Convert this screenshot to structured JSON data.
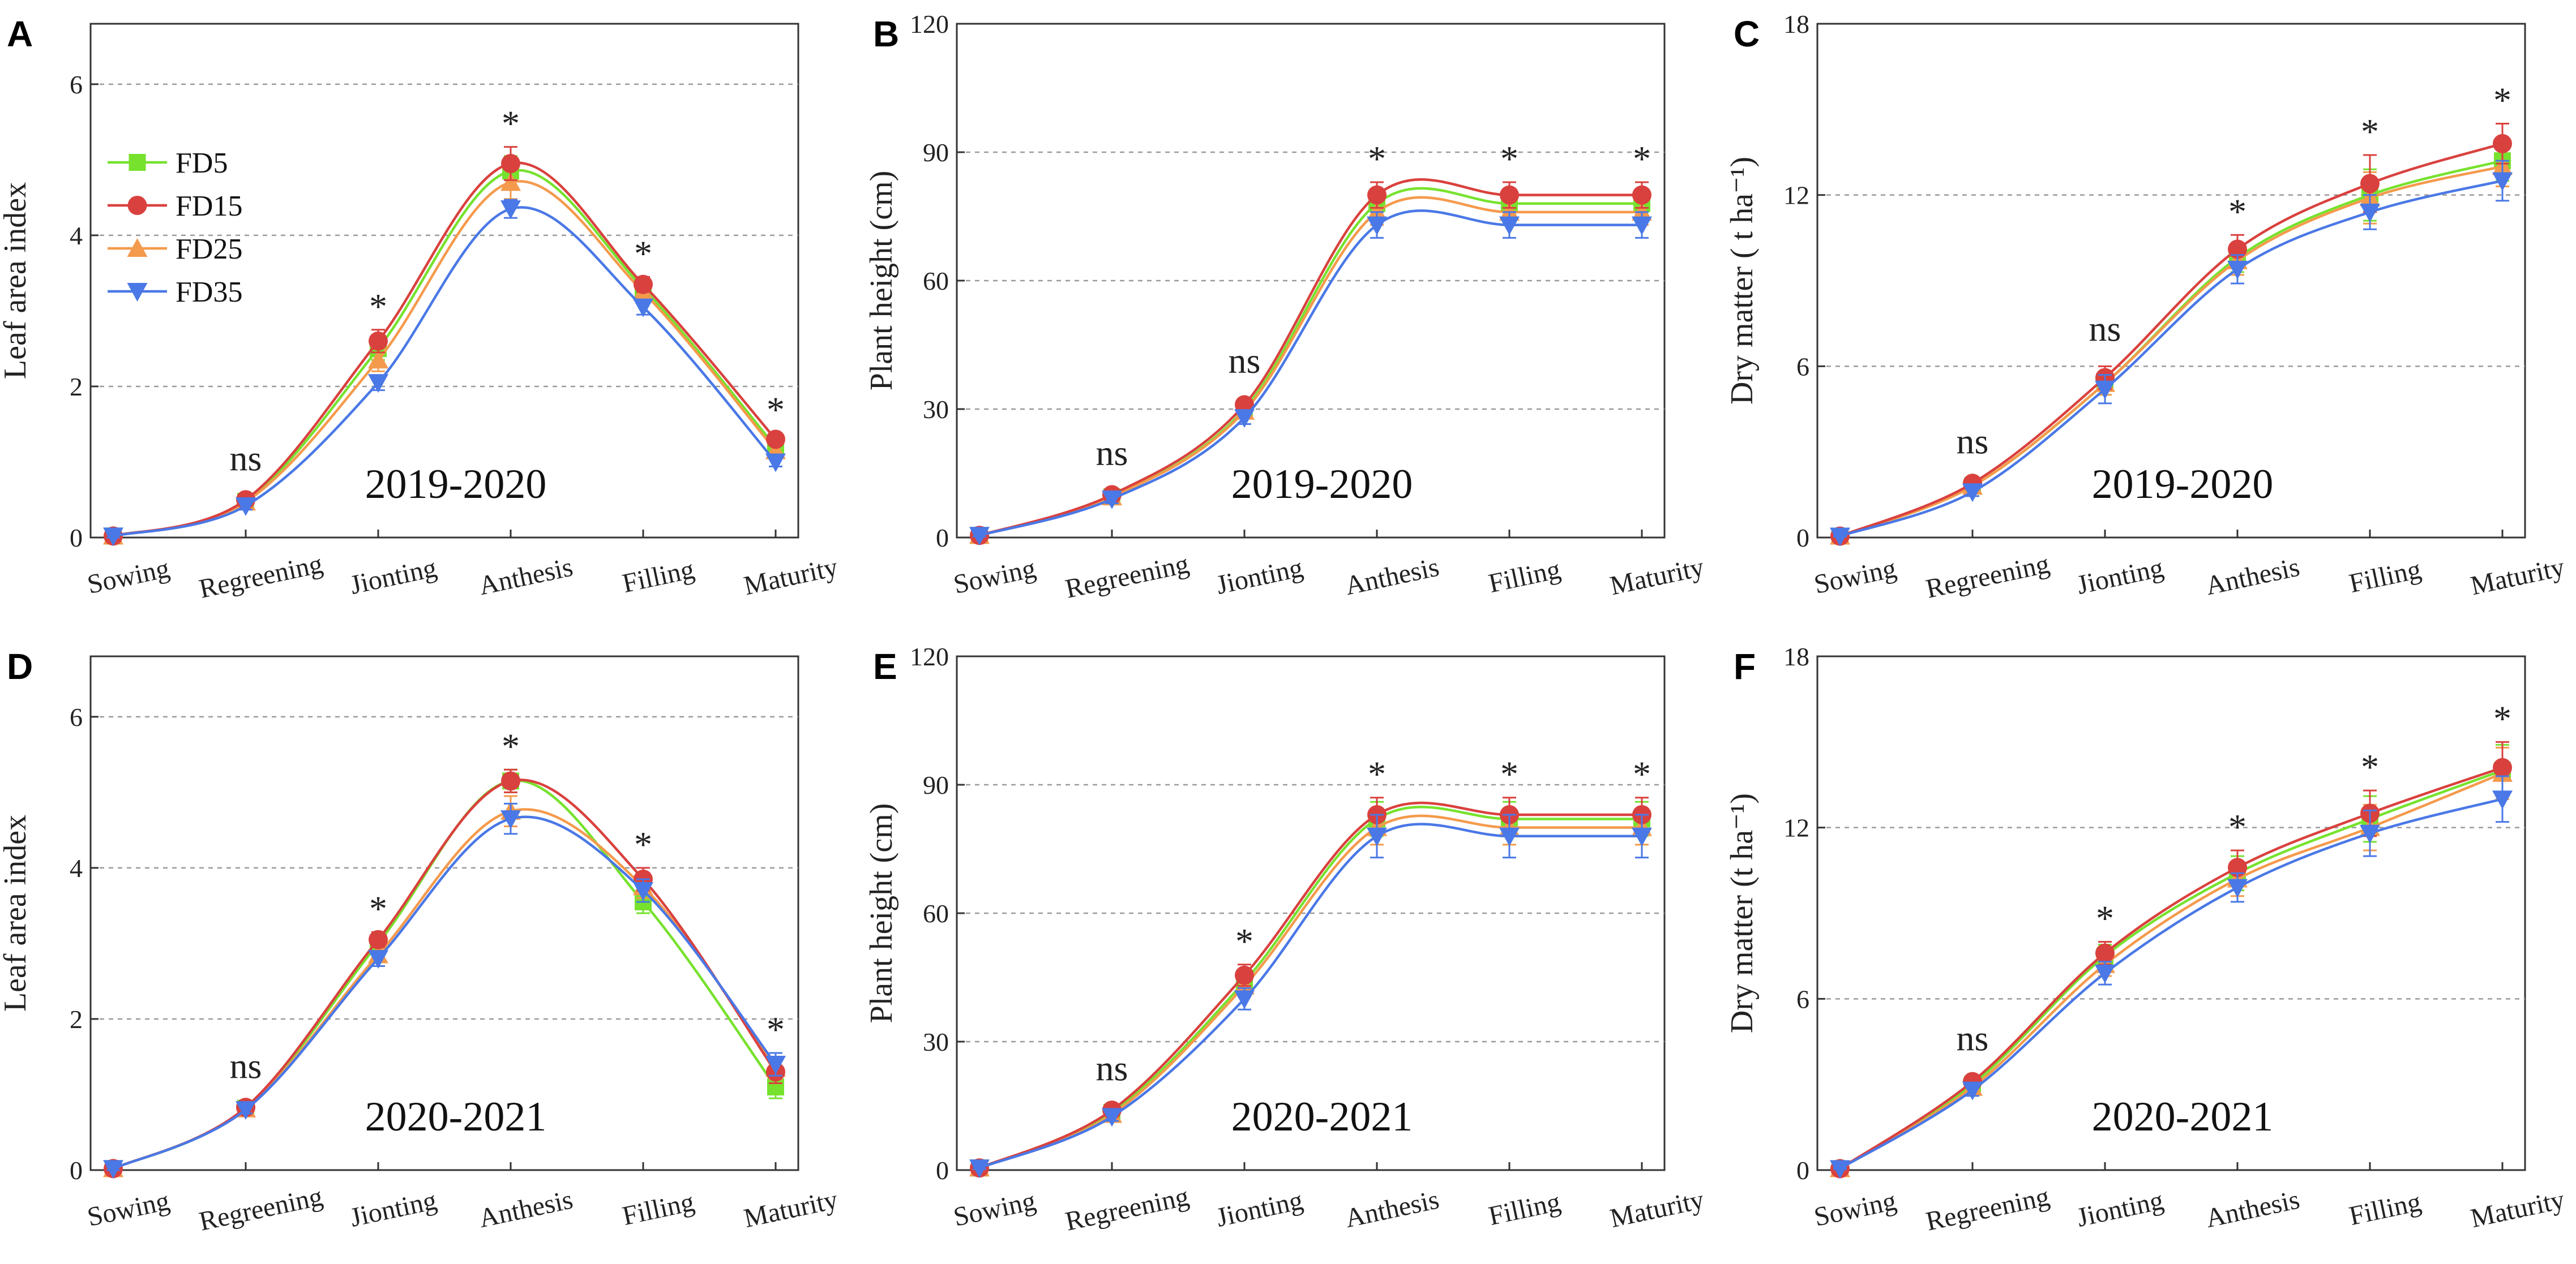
{
  "figure": {
    "categories": [
      "Sowing",
      "Regreening",
      "Jionting",
      "Anthesis",
      "Filling",
      "Maturity"
    ],
    "legend": [
      "FD5",
      "FD15",
      "FD25",
      "FD35"
    ],
    "colors": {
      "FD5": "#77e22e",
      "FD15": "#d9413e",
      "FD25": "#f49a4c",
      "FD35": "#4a78e6"
    },
    "markers": {
      "FD5": "square",
      "FD15": "circle",
      "FD25": "triangle-up",
      "FD35": "triangle-down"
    }
  },
  "chart_data": [
    {
      "panel": "A",
      "type": "line",
      "title": "",
      "season": "2019-2020",
      "xlabel": "",
      "ylabel": "Leaf area index",
      "ylim": [
        0,
        6.8
      ],
      "yticks": [
        0,
        2,
        4,
        6
      ],
      "grid": "dashed-y",
      "categories": [
        "Sowing",
        "Regreening",
        "Jionting",
        "Anthesis",
        "Filling",
        "Maturity"
      ],
      "significance": [
        "",
        "ns",
        "*",
        "*",
        "*",
        "*"
      ],
      "series": [
        {
          "name": "FD5",
          "values": [
            0.02,
            0.48,
            2.5,
            4.85,
            3.3,
            1.2
          ],
          "errors": [
            0.02,
            0.05,
            0.15,
            0.2,
            0.1,
            0.08
          ]
        },
        {
          "name": "FD15",
          "values": [
            0.02,
            0.5,
            2.6,
            4.95,
            3.35,
            1.3
          ],
          "errors": [
            0.02,
            0.05,
            0.15,
            0.22,
            0.1,
            0.08
          ]
        },
        {
          "name": "FD25",
          "values": [
            0.02,
            0.47,
            2.35,
            4.7,
            3.25,
            1.15
          ],
          "errors": [
            0.02,
            0.05,
            0.15,
            0.22,
            0.1,
            0.08
          ]
        },
        {
          "name": "FD35",
          "values": [
            0.02,
            0.42,
            2.05,
            4.35,
            3.05,
            1.0
          ],
          "errors": [
            0.02,
            0.05,
            0.1,
            0.12,
            0.1,
            0.06
          ]
        }
      ]
    },
    {
      "panel": "B",
      "type": "line",
      "title": "",
      "season": "2019-2020",
      "xlabel": "",
      "ylabel": "Plant height (cm)",
      "ylim": [
        0,
        120
      ],
      "yticks": [
        0,
        30,
        60,
        90,
        120
      ],
      "grid": "dashed-y",
      "categories": [
        "Sowing",
        "Regreening",
        "Jionting",
        "Anthesis",
        "Filling",
        "Maturity"
      ],
      "significance": [
        "",
        "ns",
        "ns",
        "*",
        "*",
        "*"
      ],
      "series": [
        {
          "name": "FD5",
          "values": [
            0.5,
            9.5,
            30,
            78,
            78,
            78
          ],
          "errors": [
            0.3,
            1,
            1.5,
            3,
            3,
            3
          ]
        },
        {
          "name": "FD15",
          "values": [
            0.5,
            10,
            31,
            80,
            80,
            80
          ],
          "errors": [
            0.3,
            1,
            1.5,
            3,
            3,
            3
          ]
        },
        {
          "name": "FD25",
          "values": [
            0.5,
            9.5,
            29.5,
            76,
            76,
            76
          ],
          "errors": [
            0.3,
            1,
            1.5,
            3,
            3,
            3
          ]
        },
        {
          "name": "FD35",
          "values": [
            0.5,
            9,
            28,
            73,
            73,
            73
          ],
          "errors": [
            0.3,
            1,
            1.5,
            3,
            3,
            3
          ]
        }
      ]
    },
    {
      "panel": "C",
      "type": "line",
      "title": "",
      "season": "2019-2020",
      "xlabel": "",
      "ylabel": "Dry matter ( t ha⁻¹)",
      "ylim": [
        0,
        18
      ],
      "yticks": [
        0,
        6,
        12,
        18
      ],
      "grid": "dashed-y",
      "categories": [
        "Sowing",
        "Regreening",
        "Jionting",
        "Anthesis",
        "Filling",
        "Maturity"
      ],
      "significance": [
        "",
        "ns",
        "ns",
        "*",
        "*",
        "*"
      ],
      "series": [
        {
          "name": "FD5",
          "values": [
            0.05,
            1.8,
            5.4,
            9.8,
            12.0,
            13.2
          ],
          "errors": [
            0.02,
            0.15,
            0.4,
            0.5,
            0.9,
            0.7
          ]
        },
        {
          "name": "FD15",
          "values": [
            0.05,
            1.9,
            5.6,
            10.1,
            12.4,
            13.8
          ],
          "errors": [
            0.02,
            0.15,
            0.4,
            0.5,
            1.0,
            0.7
          ]
        },
        {
          "name": "FD25",
          "values": [
            0.05,
            1.8,
            5.4,
            9.7,
            11.9,
            13.0
          ],
          "errors": [
            0.02,
            0.15,
            0.4,
            0.5,
            0.9,
            0.7
          ]
        },
        {
          "name": "FD35",
          "values": [
            0.05,
            1.6,
            5.2,
            9.4,
            11.4,
            12.5
          ],
          "errors": [
            0.02,
            0.15,
            0.5,
            0.5,
            0.6,
            0.7
          ]
        }
      ]
    },
    {
      "panel": "D",
      "type": "line",
      "title": "",
      "season": "2020-2021",
      "xlabel": "",
      "ylabel": "Leaf area index",
      "ylim": [
        0,
        6.8
      ],
      "yticks": [
        0,
        2,
        4,
        6
      ],
      "grid": "dashed-y",
      "categories": [
        "Sowing",
        "Regreening",
        "Jionting",
        "Anthesis",
        "Filling",
        "Maturity"
      ],
      "significance": [
        "",
        "ns",
        "*",
        "*",
        "*",
        "*"
      ],
      "series": [
        {
          "name": "FD5",
          "values": [
            0.02,
            0.82,
            3.0,
            5.15,
            3.55,
            1.1
          ],
          "errors": [
            0.02,
            0.05,
            0.1,
            0.15,
            0.15,
            0.15
          ]
        },
        {
          "name": "FD15",
          "values": [
            0.02,
            0.83,
            3.05,
            5.15,
            3.85,
            1.3
          ],
          "errors": [
            0.02,
            0.05,
            0.1,
            0.15,
            0.15,
            0.15
          ]
        },
        {
          "name": "FD25",
          "values": [
            0.02,
            0.81,
            2.85,
            4.75,
            3.75,
            1.35
          ],
          "errors": [
            0.02,
            0.05,
            0.1,
            0.2,
            0.15,
            0.15
          ]
        },
        {
          "name": "FD35",
          "values": [
            0.02,
            0.8,
            2.8,
            4.65,
            3.7,
            1.4
          ],
          "errors": [
            0.02,
            0.05,
            0.1,
            0.2,
            0.15,
            0.15
          ]
        }
      ]
    },
    {
      "panel": "E",
      "type": "line",
      "title": "",
      "season": "2020-2021",
      "xlabel": "",
      "ylabel": "Plant height (cm)",
      "ylim": [
        0,
        120
      ],
      "yticks": [
        0,
        30,
        60,
        90,
        120
      ],
      "grid": "dashed-y",
      "categories": [
        "Sowing",
        "Regreening",
        "Jionting",
        "Anthesis",
        "Filling",
        "Maturity"
      ],
      "significance": [
        "",
        "ns",
        "*",
        "*",
        "*",
        "*"
      ],
      "series": [
        {
          "name": "FD5",
          "values": [
            0.5,
            13.5,
            44,
            82,
            82,
            82
          ],
          "errors": [
            0.3,
            1,
            2.5,
            4,
            4,
            4
          ]
        },
        {
          "name": "FD15",
          "values": [
            0.5,
            14,
            45.5,
            83,
            83,
            83
          ],
          "errors": [
            0.3,
            1,
            2.5,
            4,
            4,
            4
          ]
        },
        {
          "name": "FD25",
          "values": [
            0.5,
            13,
            43,
            80,
            80,
            80
          ],
          "errors": [
            0.3,
            1,
            2.5,
            4,
            4,
            4
          ]
        },
        {
          "name": "FD35",
          "values": [
            0.5,
            12.5,
            40,
            78,
            78,
            78
          ],
          "errors": [
            0.3,
            1,
            2.5,
            5,
            5,
            5
          ]
        }
      ]
    },
    {
      "panel": "F",
      "type": "line",
      "title": "",
      "season": "2020-2021",
      "xlabel": "",
      "ylabel": "Dry matter (t ha⁻¹)",
      "ylim": [
        0,
        18
      ],
      "yticks": [
        0,
        6,
        12,
        18
      ],
      "grid": "dashed-y",
      "categories": [
        "Sowing",
        "Regreening",
        "Jionting",
        "Anthesis",
        "Filling",
        "Maturity"
      ],
      "significance": [
        "",
        "ns",
        "*",
        "*",
        "*",
        "*"
      ],
      "series": [
        {
          "name": "FD5",
          "values": [
            0.05,
            3.0,
            7.5,
            10.4,
            12.3,
            14.0
          ],
          "errors": [
            0.02,
            0.2,
            0.4,
            0.6,
            0.8,
            0.9
          ]
        },
        {
          "name": "FD15",
          "values": [
            0.05,
            3.1,
            7.6,
            10.6,
            12.5,
            14.1
          ],
          "errors": [
            0.02,
            0.2,
            0.4,
            0.6,
            0.8,
            0.9
          ]
        },
        {
          "name": "FD25",
          "values": [
            0.05,
            2.9,
            7.2,
            10.2,
            12.0,
            13.9
          ],
          "errors": [
            0.02,
            0.2,
            0.4,
            0.6,
            0.8,
            0.9
          ]
        },
        {
          "name": "FD35",
          "values": [
            0.05,
            2.8,
            6.9,
            9.9,
            11.8,
            13.0
          ],
          "errors": [
            0.02,
            0.2,
            0.4,
            0.5,
            0.8,
            0.8
          ]
        }
      ]
    }
  ]
}
